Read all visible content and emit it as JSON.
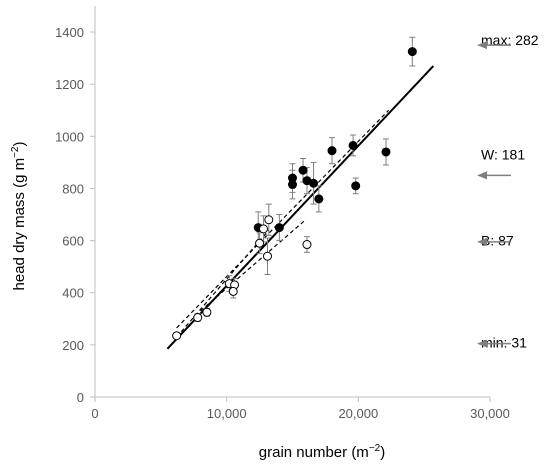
{
  "chart_data": {
    "type": "scatter",
    "xlabel": "grain number (m",
    "xlabel_sup": "−2",
    "xlabel_end": ")",
    "ylabel": "head  dry mass (g m",
    "ylabel_sup": "−2",
    "ylabel_end": ")",
    "xlim": [
      0,
      30000
    ],
    "ylim": [
      0,
      1500
    ],
    "x_ticks": [
      0,
      10000,
      20000,
      30000
    ],
    "x_tick_labels": [
      "0",
      "10,000",
      "20,000",
      "30,000"
    ],
    "y_ticks": [
      0,
      200,
      400,
      600,
      800,
      1000,
      1200,
      1400
    ],
    "y_tick_labels": [
      "0",
      "200",
      "400",
      "600",
      "800",
      "1000",
      "1200",
      "1400"
    ],
    "grid": false,
    "series": [
      {
        "marker": "filled-circle",
        "points": [
          {
            "x": 12400,
            "y": 650,
            "err": 60
          },
          {
            "x": 14000,
            "y": 650,
            "err": 50
          },
          {
            "x": 15000,
            "y": 840,
            "err": 55
          },
          {
            "x": 15000,
            "y": 815,
            "err": 55
          },
          {
            "x": 15800,
            "y": 870,
            "err": 45
          },
          {
            "x": 16100,
            "y": 830,
            "err": 50
          },
          {
            "x": 16600,
            "y": 820,
            "err": 80
          },
          {
            "x": 17000,
            "y": 760,
            "err": 50
          },
          {
            "x": 18000,
            "y": 945,
            "err": 50
          },
          {
            "x": 19600,
            "y": 965,
            "err": 40
          },
          {
            "x": 19800,
            "y": 810,
            "err": 30
          },
          {
            "x": 22100,
            "y": 940,
            "err": 50
          },
          {
            "x": 24100,
            "y": 1325,
            "err": 55
          }
        ]
      },
      {
        "marker": "open-circle",
        "points": [
          {
            "x": 6200,
            "y": 235,
            "err": 10
          },
          {
            "x": 7800,
            "y": 305,
            "err": 15
          },
          {
            "x": 8500,
            "y": 325,
            "err": 15
          },
          {
            "x": 10200,
            "y": 435,
            "err": 30
          },
          {
            "x": 10600,
            "y": 430,
            "err": 25
          },
          {
            "x": 10500,
            "y": 405,
            "err": 25
          },
          {
            "x": 12500,
            "y": 590,
            "err": 40
          },
          {
            "x": 12800,
            "y": 645,
            "err": 50
          },
          {
            "x": 13200,
            "y": 680,
            "err": 60
          },
          {
            "x": 13100,
            "y": 540,
            "err": 70
          },
          {
            "x": 16100,
            "y": 585,
            "err": 30
          }
        ]
      }
    ],
    "fit_lines": [
      {
        "style": "solid",
        "points": [
          [
            5500,
            185
          ],
          [
            25700,
            1270
          ]
        ]
      },
      {
        "style": "dashed",
        "points": [
          [
            6200,
            265
          ],
          [
            22300,
            1100
          ]
        ]
      },
      {
        "style": "dashed",
        "points": [
          [
            6200,
            230
          ],
          [
            13200,
            640
          ]
        ]
      },
      {
        "style": "dashed",
        "points": [
          [
            8000,
            330
          ],
          [
            16000,
            680
          ]
        ]
      }
    ],
    "annotations": [
      {
        "label": "max: 282",
        "y": 1370
      },
      {
        "label": "W: 181",
        "y": 930
      },
      {
        "label": "B: 87",
        "y": 600
      },
      {
        "label": "min: 31",
        "y": 210
      }
    ],
    "annotation_arrow_y": [
      1350,
      850,
      595,
      205
    ]
  }
}
